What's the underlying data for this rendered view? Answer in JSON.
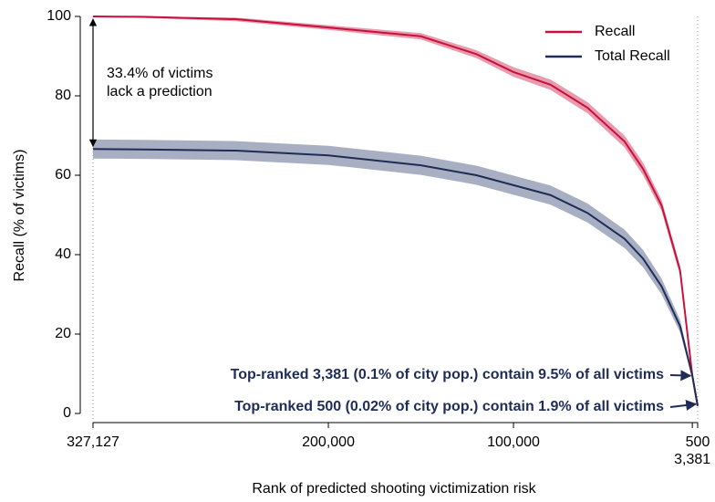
{
  "chart_data": {
    "type": "line",
    "xlabel": "Rank of predicted shooting victimization risk",
    "ylabel": "Recall (% of victims)",
    "x": [
      327127,
      300000,
      250000,
      200000,
      150000,
      120000,
      100000,
      80000,
      60000,
      40000,
      30000,
      20000,
      10000,
      3381,
      500
    ],
    "series": [
      {
        "name": "Recall",
        "color": "#c8103e",
        "band_color": "#e48a9f",
        "values": [
          100,
          99.9,
          99.3,
          97.2,
          95,
          90.5,
          86,
          82.8,
          77,
          68.5,
          61.6,
          52.4,
          36,
          9.5,
          1.9
        ],
        "lower": [
          99.8,
          99.6,
          98.8,
          96.6,
          94.2,
          89.5,
          84.8,
          81.5,
          75.6,
          67,
          60,
          51,
          34.8,
          8.8,
          1.6
        ],
        "upper": [
          100,
          100,
          99.7,
          97.8,
          95.8,
          91.5,
          87.2,
          84.1,
          78.4,
          70,
          63.2,
          53.8,
          37.2,
          10.2,
          2.2
        ]
      },
      {
        "name": "Total Recall",
        "color": "#1f2d56",
        "band_color": "#9aa1b8",
        "values": [
          66.6,
          66.5,
          66.2,
          65,
          62.5,
          60,
          57.5,
          55,
          50.5,
          44,
          39,
          32,
          22,
          9.5,
          1.9
        ],
        "lower": [
          64.2,
          64.1,
          63.8,
          62.6,
          60.1,
          57.6,
          55.1,
          52.6,
          48.1,
          41.7,
          36.8,
          30,
          20.4,
          8.8,
          1.6
        ],
        "upper": [
          69,
          68.9,
          68.6,
          67.4,
          64.9,
          62.4,
          59.9,
          57.4,
          52.9,
          46.3,
          41.2,
          34,
          23.6,
          10.2,
          2.2
        ]
      }
    ],
    "xlim": [
      327127,
      500
    ],
    "xticks": [
      {
        "value": 327127,
        "label": "327,127"
      },
      {
        "value": 200000,
        "label": "200,000"
      },
      {
        "value": 100000,
        "label": "100,000"
      },
      500,
      {
        "value": 3381,
        "label": "3,381"
      }
    ],
    "ylim": [
      0,
      100
    ],
    "yticks": [
      0,
      20,
      40,
      60,
      80,
      100
    ],
    "legend": "upper right",
    "annotations": [
      {
        "text": [
          "33.4% of victims",
          "lack a prediction"
        ],
        "x": 327127,
        "y_from": 100,
        "y_to": 66.6
      },
      {
        "text": "Top-ranked 3,381 (0.1% of city pop.) contain 9.5% of all victims",
        "x": 3381,
        "y": 9.5
      },
      {
        "text": "Top-ranked 500 (0.02% of city pop.) contain 1.9% of all victims",
        "x": 500,
        "y": 1.9
      }
    ]
  }
}
